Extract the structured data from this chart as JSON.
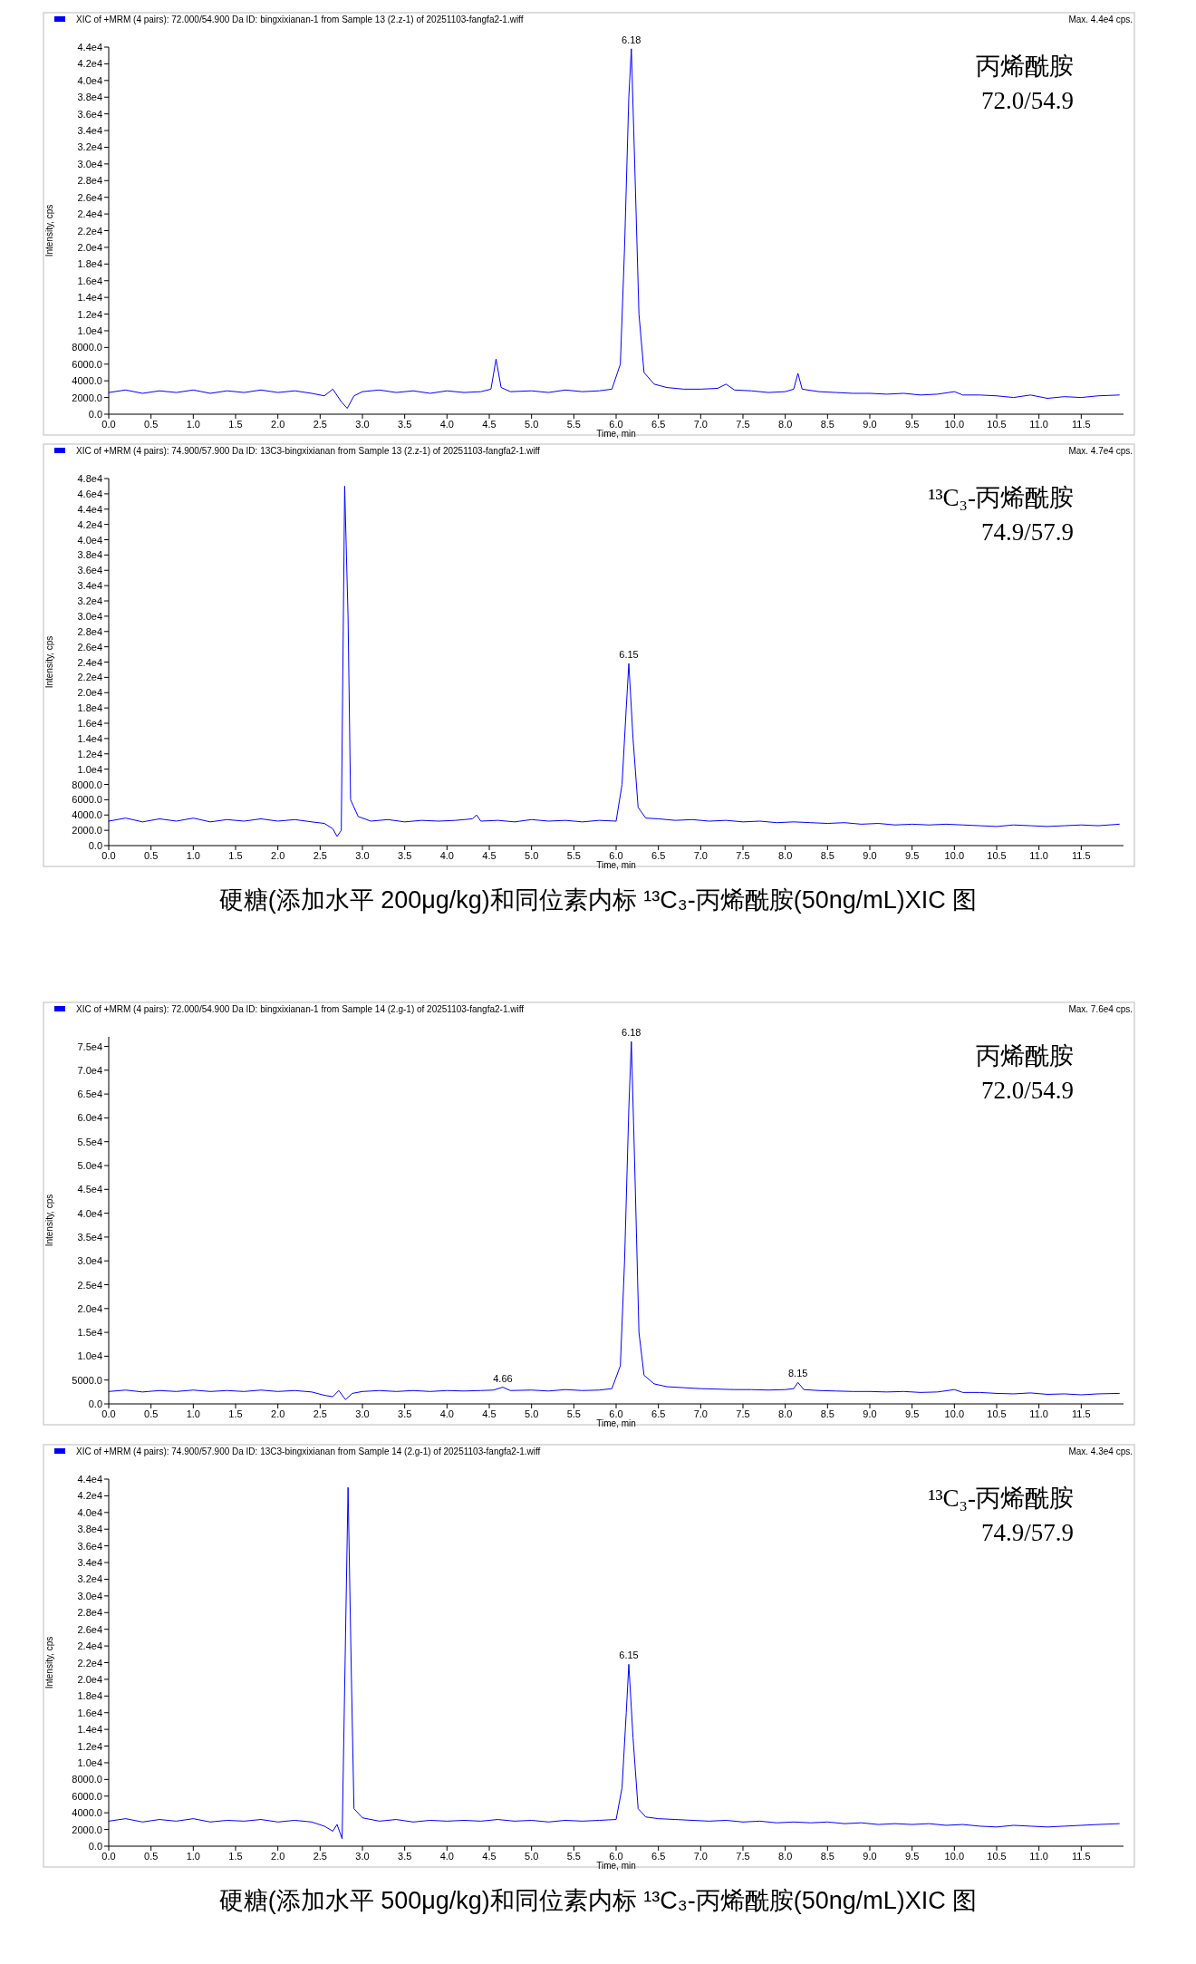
{
  "chart_data": [
    {
      "type": "line",
      "title": "XIC of +MRM (4 pairs): 72.000/54.900 Da ID: bingxixianan-1 from Sample 13 (2.z-1) of 20251103-fangfa2-1.wiff",
      "subtitle": "Max. 4.4e4 cps.",
      "xlabel": "Time, min",
      "ylabel": "Intensity, cps",
      "xlim": [
        0,
        12
      ],
      "ylim": [
        0,
        44000
      ],
      "xticks": [
        {
          "value": 0,
          "label": "0.0"
        },
        {
          "value": 0.5,
          "label": "0.5"
        },
        {
          "value": 1,
          "label": "1.0"
        },
        {
          "value": 1.5,
          "label": "1.5"
        },
        {
          "value": 2,
          "label": "2.0"
        },
        {
          "value": 2.5,
          "label": "2.5"
        },
        {
          "value": 3,
          "label": "3.0"
        },
        {
          "value": 3.5,
          "label": "3.5"
        },
        {
          "value": 4,
          "label": "4.0"
        },
        {
          "value": 4.5,
          "label": "4.5"
        },
        {
          "value": 5,
          "label": "5.0"
        },
        {
          "value": 5.5,
          "label": "5.5"
        },
        {
          "value": 6,
          "label": "6.0"
        },
        {
          "value": 6.5,
          "label": "6.5"
        },
        {
          "value": 7,
          "label": "7.0"
        },
        {
          "value": 7.5,
          "label": "7.5"
        },
        {
          "value": 8,
          "label": "8.0"
        },
        {
          "value": 8.5,
          "label": "8.5"
        },
        {
          "value": 9,
          "label": "9.0"
        },
        {
          "value": 9.5,
          "label": "9.5"
        },
        {
          "value": 10,
          "label": "10.0"
        },
        {
          "value": 10.5,
          "label": "10.5"
        },
        {
          "value": 11,
          "label": "11.0"
        },
        {
          "value": 11.5,
          "label": "11.5"
        }
      ],
      "yticks": [
        {
          "value": 0,
          "label": "0.0"
        },
        {
          "value": 2000,
          "label": "2000.0"
        },
        {
          "value": 4000,
          "label": "4000.0"
        },
        {
          "value": 6000,
          "label": "6000.0"
        },
        {
          "value": 8000,
          "label": "8000.0"
        },
        {
          "value": 10000,
          "label": "1.0e4"
        },
        {
          "value": 12000,
          "label": "1.2e4"
        },
        {
          "value": 14000,
          "label": "1.4e4"
        },
        {
          "value": 16000,
          "label": "1.6e4"
        },
        {
          "value": 18000,
          "label": "1.8e4"
        },
        {
          "value": 20000,
          "label": "2.0e4"
        },
        {
          "value": 22000,
          "label": "2.2e4"
        },
        {
          "value": 24000,
          "label": "2.4e4"
        },
        {
          "value": 26000,
          "label": "2.6e4"
        },
        {
          "value": 28000,
          "label": "2.8e4"
        },
        {
          "value": 30000,
          "label": "3.0e4"
        },
        {
          "value": 32000,
          "label": "3.2e4"
        },
        {
          "value": 34000,
          "label": "3.4e4"
        },
        {
          "value": 36000,
          "label": "3.6e4"
        },
        {
          "value": 38000,
          "label": "3.8e4"
        },
        {
          "value": 40000,
          "label": "4.0e4"
        },
        {
          "value": 42000,
          "label": "4.2e4"
        },
        {
          "value": 44000,
          "label": "4.4e4"
        }
      ],
      "series": [
        {
          "color": "#0000ff",
          "x": [
            0,
            0.2,
            0.4,
            0.6,
            0.8,
            1.0,
            1.2,
            1.4,
            1.6,
            1.8,
            2.0,
            2.2,
            2.4,
            2.55,
            2.65,
            2.75,
            2.82,
            2.9,
            3.0,
            3.2,
            3.4,
            3.6,
            3.8,
            4.0,
            4.2,
            4.4,
            4.52,
            4.58,
            4.64,
            4.75,
            5.0,
            5.2,
            5.4,
            5.6,
            5.8,
            5.95,
            6.05,
            6.1,
            6.15,
            6.18,
            6.22,
            6.27,
            6.33,
            6.45,
            6.6,
            6.8,
            7.0,
            7.2,
            7.3,
            7.4,
            7.6,
            7.8,
            8.0,
            8.1,
            8.15,
            8.2,
            8.4,
            8.6,
            8.8,
            9.0,
            9.2,
            9.4,
            9.6,
            9.8,
            10.0,
            10.1,
            10.3,
            10.5,
            10.7,
            10.9,
            11.1,
            11.3,
            11.5,
            11.7,
            11.95
          ],
          "values": [
            2600,
            2900,
            2500,
            2800,
            2600,
            2900,
            2500,
            2800,
            2600,
            2900,
            2600,
            2800,
            2500,
            2200,
            3000,
            1500,
            700,
            2200,
            2700,
            2900,
            2600,
            2800,
            2500,
            2800,
            2600,
            2700,
            3000,
            6600,
            3200,
            2700,
            2800,
            2600,
            2900,
            2700,
            2800,
            3000,
            6000,
            20000,
            38000,
            43800,
            30000,
            12000,
            5000,
            3600,
            3200,
            3000,
            3000,
            3100,
            3600,
            2900,
            2800,
            2600,
            2700,
            3000,
            4900,
            3000,
            2700,
            2600,
            2500,
            2500,
            2400,
            2500,
            2300,
            2400,
            2700,
            2300,
            2300,
            2200,
            2000,
            2300,
            1900,
            2100,
            2000,
            2200,
            2300
          ]
        }
      ],
      "annotations": [
        "丙烯酰胺",
        "72.0/54.9",
        {
          "text": "6.18",
          "x": 6.18,
          "y": 43800
        }
      ]
    },
    {
      "type": "line",
      "title": "XIC of +MRM (4 pairs): 74.900/57.900 Da ID: 13C3-bingxixianan from Sample 13 (2.z-1) of 20251103-fangfa2-1.wiff",
      "subtitle": "Max. 4.7e4 cps.",
      "xlabel": "Time, min",
      "ylabel": "Intensity, cps",
      "xlim": [
        0,
        12
      ],
      "ylim": [
        0,
        48000
      ],
      "xticks": [
        {
          "value": 0,
          "label": "0.0"
        },
        {
          "value": 0.5,
          "label": "0.5"
        },
        {
          "value": 1,
          "label": "1.0"
        },
        {
          "value": 1.5,
          "label": "1.5"
        },
        {
          "value": 2,
          "label": "2.0"
        },
        {
          "value": 2.5,
          "label": "2.5"
        },
        {
          "value": 3,
          "label": "3.0"
        },
        {
          "value": 3.5,
          "label": "3.5"
        },
        {
          "value": 4,
          "label": "4.0"
        },
        {
          "value": 4.5,
          "label": "4.5"
        },
        {
          "value": 5,
          "label": "5.0"
        },
        {
          "value": 5.5,
          "label": "5.5"
        },
        {
          "value": 6,
          "label": "6.0"
        },
        {
          "value": 6.5,
          "label": "6.5"
        },
        {
          "value": 7,
          "label": "7.0"
        },
        {
          "value": 7.5,
          "label": "7.5"
        },
        {
          "value": 8,
          "label": "8.0"
        },
        {
          "value": 8.5,
          "label": "8.5"
        },
        {
          "value": 9,
          "label": "9.0"
        },
        {
          "value": 9.5,
          "label": "9.5"
        },
        {
          "value": 10,
          "label": "10.0"
        },
        {
          "value": 10.5,
          "label": "10.5"
        },
        {
          "value": 11,
          "label": "11.0"
        },
        {
          "value": 11.5,
          "label": "11.5"
        }
      ],
      "yticks": [
        {
          "value": 0,
          "label": "0.0"
        },
        {
          "value": 2000,
          "label": "2000.0"
        },
        {
          "value": 4000,
          "label": "4000.0"
        },
        {
          "value": 6000,
          "label": "6000.0"
        },
        {
          "value": 8000,
          "label": "8000.0"
        },
        {
          "value": 10000,
          "label": "1.0e4"
        },
        {
          "value": 12000,
          "label": "1.2e4"
        },
        {
          "value": 14000,
          "label": "1.4e4"
        },
        {
          "value": 16000,
          "label": "1.6e4"
        },
        {
          "value": 18000,
          "label": "1.8e4"
        },
        {
          "value": 20000,
          "label": "2.0e4"
        },
        {
          "value": 22000,
          "label": "2.2e4"
        },
        {
          "value": 24000,
          "label": "2.4e4"
        },
        {
          "value": 26000,
          "label": "2.6e4"
        },
        {
          "value": 28000,
          "label": "2.8e4"
        },
        {
          "value": 30000,
          "label": "3.0e4"
        },
        {
          "value": 32000,
          "label": "3.2e4"
        },
        {
          "value": 34000,
          "label": "3.4e4"
        },
        {
          "value": 36000,
          "label": "3.6e4"
        },
        {
          "value": 38000,
          "label": "3.8e4"
        },
        {
          "value": 40000,
          "label": "4.0e4"
        },
        {
          "value": 42000,
          "label": "4.2e4"
        },
        {
          "value": 44000,
          "label": "4.4e4"
        },
        {
          "value": 46000,
          "label": "4.6e4"
        },
        {
          "value": 48000,
          "label": "4.8e4"
        }
      ],
      "series": [
        {
          "color": "#0000ff",
          "x": [
            0,
            0.2,
            0.4,
            0.6,
            0.8,
            1.0,
            1.2,
            1.4,
            1.6,
            1.8,
            2.0,
            2.2,
            2.4,
            2.55,
            2.65,
            2.7,
            2.75,
            2.79,
            2.83,
            2.86,
            2.95,
            3.1,
            3.3,
            3.5,
            3.7,
            3.9,
            4.1,
            4.3,
            4.35,
            4.4,
            4.6,
            4.8,
            5.0,
            5.2,
            5.4,
            5.6,
            5.8,
            6.0,
            6.07,
            6.12,
            6.15,
            6.2,
            6.26,
            6.35,
            6.5,
            6.7,
            6.9,
            7.1,
            7.3,
            7.5,
            7.7,
            7.9,
            8.1,
            8.3,
            8.5,
            8.7,
            8.9,
            9.1,
            9.3,
            9.5,
            9.7,
            9.9,
            10.1,
            10.3,
            10.5,
            10.7,
            10.9,
            11.1,
            11.3,
            11.5,
            11.7,
            11.95
          ],
          "values": [
            3200,
            3600,
            3100,
            3500,
            3200,
            3600,
            3100,
            3400,
            3200,
            3500,
            3200,
            3400,
            3100,
            2900,
            2200,
            1200,
            2000,
            47000,
            30000,
            6000,
            3800,
            3200,
            3400,
            3100,
            3300,
            3200,
            3300,
            3500,
            4000,
            3200,
            3300,
            3100,
            3400,
            3200,
            3300,
            3100,
            3300,
            3200,
            8000,
            18000,
            23800,
            14000,
            5000,
            3600,
            3500,
            3300,
            3400,
            3200,
            3300,
            3100,
            3200,
            3000,
            3100,
            3000,
            2900,
            3000,
            2800,
            2900,
            2700,
            2800,
            2700,
            2800,
            2700,
            2600,
            2500,
            2700,
            2600,
            2500,
            2600,
            2700,
            2600,
            2800
          ]
        }
      ],
      "annotations": [
        "¹³C₃-丙烯酰胺",
        "74.9/57.9",
        "硬糖(添加水平 200μg/kg)和同位素内标 ¹³C₃-丙烯酰胺(50ng/mL)XIC 图",
        {
          "text": "6.15",
          "x": 6.15,
          "y": 23800
        }
      ]
    },
    {
      "type": "line",
      "title": "XIC of +MRM (4 pairs): 72.000/54.900 Da ID: bingxixianan-1 from Sample 14 (2.g-1) of 20251103-fangfa2-1.wiff",
      "subtitle": "Max. 7.6e4 cps.",
      "xlabel": "Time, min",
      "ylabel": "Intensity, cps",
      "xlim": [
        0,
        12
      ],
      "ylim": [
        0,
        77000
      ],
      "xticks": [
        {
          "value": 0,
          "label": "0.0"
        },
        {
          "value": 0.5,
          "label": "0.5"
        },
        {
          "value": 1,
          "label": "1.0"
        },
        {
          "value": 1.5,
          "label": "1.5"
        },
        {
          "value": 2,
          "label": "2.0"
        },
        {
          "value": 2.5,
          "label": "2.5"
        },
        {
          "value": 3,
          "label": "3.0"
        },
        {
          "value": 3.5,
          "label": "3.5"
        },
        {
          "value": 4,
          "label": "4.0"
        },
        {
          "value": 4.5,
          "label": "4.5"
        },
        {
          "value": 5,
          "label": "5.0"
        },
        {
          "value": 5.5,
          "label": "5.5"
        },
        {
          "value": 6,
          "label": "6.0"
        },
        {
          "value": 6.5,
          "label": "6.5"
        },
        {
          "value": 7,
          "label": "7.0"
        },
        {
          "value": 7.5,
          "label": "7.5"
        },
        {
          "value": 8,
          "label": "8.0"
        },
        {
          "value": 8.5,
          "label": "8.5"
        },
        {
          "value": 9,
          "label": "9.0"
        },
        {
          "value": 9.5,
          "label": "9.5"
        },
        {
          "value": 10,
          "label": "10.0"
        },
        {
          "value": 10.5,
          "label": "10.5"
        },
        {
          "value": 11,
          "label": "11.0"
        },
        {
          "value": 11.5,
          "label": "11.5"
        }
      ],
      "yticks": [
        {
          "value": 0,
          "label": "0.0"
        },
        {
          "value": 5000,
          "label": "5000.0"
        },
        {
          "value": 10000,
          "label": "1.0e4"
        },
        {
          "value": 15000,
          "label": "1.5e4"
        },
        {
          "value": 20000,
          "label": "2.0e4"
        },
        {
          "value": 25000,
          "label": "2.5e4"
        },
        {
          "value": 30000,
          "label": "3.0e4"
        },
        {
          "value": 35000,
          "label": "3.5e4"
        },
        {
          "value": 40000,
          "label": "4.0e4"
        },
        {
          "value": 45000,
          "label": "4.5e4"
        },
        {
          "value": 50000,
          "label": "5.0e4"
        },
        {
          "value": 55000,
          "label": "5.5e4"
        },
        {
          "value": 60000,
          "label": "6.0e4"
        },
        {
          "value": 65000,
          "label": "6.5e4"
        },
        {
          "value": 70000,
          "label": "7.0e4"
        },
        {
          "value": 75000,
          "label": "7.5e4"
        }
      ],
      "series": [
        {
          "color": "#0000ff",
          "x": [
            0,
            0.2,
            0.4,
            0.6,
            0.8,
            1.0,
            1.2,
            1.4,
            1.6,
            1.8,
            2.0,
            2.2,
            2.4,
            2.55,
            2.65,
            2.72,
            2.8,
            2.88,
            3.0,
            3.2,
            3.4,
            3.6,
            3.8,
            4.0,
            4.2,
            4.4,
            4.55,
            4.66,
            4.75,
            5.0,
            5.2,
            5.4,
            5.6,
            5.8,
            5.95,
            6.05,
            6.1,
            6.15,
            6.18,
            6.22,
            6.27,
            6.33,
            6.45,
            6.6,
            6.8,
            7.0,
            7.2,
            7.4,
            7.6,
            7.8,
            8.0,
            8.1,
            8.15,
            8.22,
            8.4,
            8.6,
            8.8,
            9.0,
            9.2,
            9.4,
            9.6,
            9.8,
            10.0,
            10.1,
            10.3,
            10.5,
            10.7,
            10.9,
            11.1,
            11.3,
            11.5,
            11.7,
            11.95
          ],
          "values": [
            2600,
            2900,
            2500,
            2800,
            2600,
            2900,
            2600,
            2800,
            2600,
            2900,
            2600,
            2800,
            2500,
            1800,
            1500,
            2800,
            900,
            2200,
            2600,
            2800,
            2600,
            2800,
            2600,
            2800,
            2700,
            2800,
            2900,
            3500,
            2800,
            2900,
            2700,
            3000,
            2800,
            2900,
            3200,
            8000,
            30000,
            62000,
            76000,
            50000,
            15000,
            6000,
            4200,
            3600,
            3400,
            3200,
            3100,
            3000,
            3000,
            2900,
            3000,
            3200,
            4500,
            3000,
            2800,
            2700,
            2600,
            2600,
            2500,
            2600,
            2400,
            2500,
            3000,
            2400,
            2400,
            2200,
            2100,
            2300,
            2000,
            2100,
            1900,
            2100,
            2200
          ]
        }
      ],
      "annotations": [
        "丙烯酰胺",
        "72.0/54.9",
        {
          "text": "6.18",
          "x": 6.18,
          "y": 76000
        },
        {
          "text": "4.66",
          "x": 4.66,
          "y": 3500
        },
        {
          "text": "8.15",
          "x": 8.15,
          "y": 4500
        }
      ]
    },
    {
      "type": "line",
      "title": "XIC of +MRM (4 pairs): 74.900/57.900 Da ID: 13C3-bingxixianan from Sample 14 (2.g-1) of 20251103-fangfa2-1.wiff",
      "subtitle": "Max. 4.3e4 cps.",
      "xlabel": "Time, min",
      "ylabel": "Intensity, cps",
      "xlim": [
        0,
        12
      ],
      "ylim": [
        0,
        44000
      ],
      "xticks": [
        {
          "value": 0,
          "label": "0.0"
        },
        {
          "value": 0.5,
          "label": "0.5"
        },
        {
          "value": 1,
          "label": "1.0"
        },
        {
          "value": 1.5,
          "label": "1.5"
        },
        {
          "value": 2,
          "label": "2.0"
        },
        {
          "value": 2.5,
          "label": "2.5"
        },
        {
          "value": 3,
          "label": "3.0"
        },
        {
          "value": 3.5,
          "label": "3.5"
        },
        {
          "value": 4,
          "label": "4.0"
        },
        {
          "value": 4.5,
          "label": "4.5"
        },
        {
          "value": 5,
          "label": "5.0"
        },
        {
          "value": 5.5,
          "label": "5.5"
        },
        {
          "value": 6,
          "label": "6.0"
        },
        {
          "value": 6.5,
          "label": "6.5"
        },
        {
          "value": 7,
          "label": "7.0"
        },
        {
          "value": 7.5,
          "label": "7.5"
        },
        {
          "value": 8,
          "label": "8.0"
        },
        {
          "value": 8.5,
          "label": "8.5"
        },
        {
          "value": 9,
          "label": "9.0"
        },
        {
          "value": 9.5,
          "label": "9.5"
        },
        {
          "value": 10,
          "label": "10.0"
        },
        {
          "value": 10.5,
          "label": "10.5"
        },
        {
          "value": 11,
          "label": "11.0"
        },
        {
          "value": 11.5,
          "label": "11.5"
        }
      ],
      "yticks": [
        {
          "value": 0,
          "label": "0.0"
        },
        {
          "value": 2000,
          "label": "2000.0"
        },
        {
          "value": 4000,
          "label": "4000.0"
        },
        {
          "value": 6000,
          "label": "6000.0"
        },
        {
          "value": 8000,
          "label": "8000.0"
        },
        {
          "value": 10000,
          "label": "1.0e4"
        },
        {
          "value": 12000,
          "label": "1.2e4"
        },
        {
          "value": 14000,
          "label": "1.4e4"
        },
        {
          "value": 16000,
          "label": "1.6e4"
        },
        {
          "value": 18000,
          "label": "1.8e4"
        },
        {
          "value": 20000,
          "label": "2.0e4"
        },
        {
          "value": 22000,
          "label": "2.2e4"
        },
        {
          "value": 24000,
          "label": "2.4e4"
        },
        {
          "value": 26000,
          "label": "2.6e4"
        },
        {
          "value": 28000,
          "label": "2.8e4"
        },
        {
          "value": 30000,
          "label": "3.0e4"
        },
        {
          "value": 32000,
          "label": "3.2e4"
        },
        {
          "value": 34000,
          "label": "3.4e4"
        },
        {
          "value": 36000,
          "label": "3.6e4"
        },
        {
          "value": 38000,
          "label": "3.8e4"
        },
        {
          "value": 40000,
          "label": "4.0e4"
        },
        {
          "value": 42000,
          "label": "4.2e4"
        },
        {
          "value": 44000,
          "label": "4.4e4"
        }
      ],
      "series": [
        {
          "color": "#0000ff",
          "x": [
            0,
            0.2,
            0.4,
            0.6,
            0.8,
            1.0,
            1.2,
            1.4,
            1.6,
            1.8,
            2.0,
            2.2,
            2.4,
            2.55,
            2.65,
            2.7,
            2.76,
            2.83,
            2.87,
            2.9,
            3.0,
            3.2,
            3.4,
            3.6,
            3.8,
            4.0,
            4.2,
            4.4,
            4.6,
            4.8,
            5.0,
            5.2,
            5.4,
            5.6,
            5.8,
            6.0,
            6.07,
            6.12,
            6.15,
            6.2,
            6.26,
            6.35,
            6.5,
            6.7,
            6.9,
            7.1,
            7.3,
            7.5,
            7.7,
            7.9,
            8.1,
            8.3,
            8.5,
            8.7,
            8.9,
            9.1,
            9.3,
            9.5,
            9.7,
            9.9,
            10.1,
            10.3,
            10.5,
            10.7,
            10.9,
            11.1,
            11.3,
            11.5,
            11.7,
            11.95
          ],
          "values": [
            3000,
            3300,
            2900,
            3200,
            3000,
            3300,
            2900,
            3100,
            3000,
            3200,
            2900,
            3100,
            2900,
            2400,
            1800,
            2600,
            900,
            43000,
            20000,
            4500,
            3400,
            3000,
            3200,
            2900,
            3100,
            3000,
            3100,
            3000,
            3200,
            3000,
            3100,
            2900,
            3100,
            3000,
            3100,
            3200,
            7000,
            16000,
            21800,
            13000,
            4500,
            3500,
            3300,
            3200,
            3100,
            3000,
            3100,
            2900,
            3000,
            2800,
            2900,
            2800,
            2900,
            2700,
            2800,
            2600,
            2700,
            2600,
            2700,
            2500,
            2600,
            2400,
            2300,
            2500,
            2400,
            2300,
            2400,
            2500,
            2600,
            2700
          ]
        }
      ],
      "annotations": [
        "¹³C₃-丙烯酰胺",
        "74.9/57.9",
        "硬糖(添加水平 500μg/kg)和同位素内标 ¹³C₃-丙烯酰胺(50ng/mL)XIC 图",
        {
          "text": "6.15",
          "x": 6.15,
          "y": 21800
        }
      ]
    }
  ]
}
